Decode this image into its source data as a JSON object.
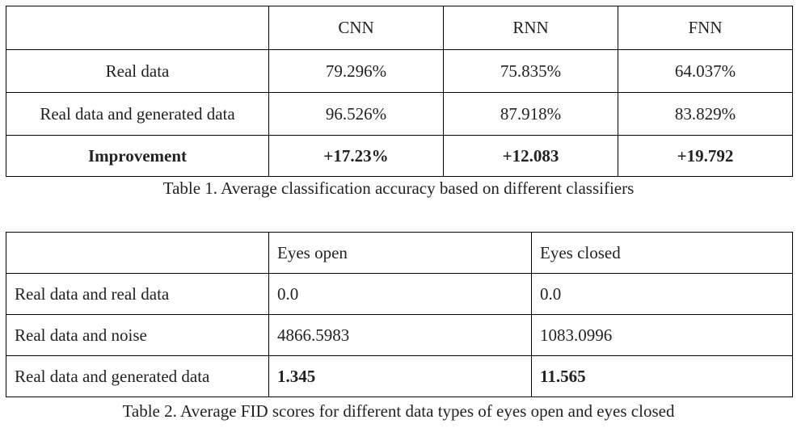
{
  "table1": {
    "headers": [
      "",
      "CNN",
      "RNN",
      "FNN"
    ],
    "rows": [
      [
        "Real data",
        "79.296%",
        "75.835%",
        "64.037%"
      ],
      [
        "Real data and generated data",
        "96.526%",
        "87.918%",
        "83.829%"
      ]
    ],
    "improvement": [
      "Improvement",
      "+17.23%",
      "+12.083",
      "+19.792"
    ],
    "caption": "Table 1. Average classification accuracy based on different classifiers"
  },
  "table2": {
    "headers": [
      "",
      "Eyes open",
      "Eyes closed"
    ],
    "rows": [
      [
        "Real data and real data",
        "0.0",
        "0.0"
      ],
      [
        "Real data and noise",
        "4866.5983",
        "1083.0996"
      ],
      [
        "Real data and generated data",
        "1.345",
        "11.565"
      ]
    ],
    "caption": "Table 2. Average FID scores for different data types of eyes open and eyes closed"
  }
}
